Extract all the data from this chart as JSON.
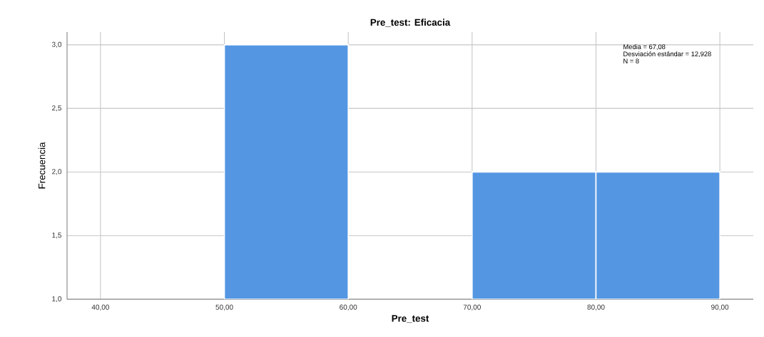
{
  "chart_data": {
    "type": "histogram",
    "title": "Pre_test: Eficacia",
    "xlabel": "Pre_test",
    "ylabel": "Frecuencia",
    "bins": [
      40,
      50,
      60,
      70,
      80,
      90
    ],
    "values": [
      null,
      3,
      null,
      2,
      2
    ],
    "color": "#5596e3",
    "xlim": [
      37.3,
      92.7
    ],
    "ylim": [
      1,
      3.1
    ],
    "xticks": [
      {
        "value": 40,
        "label": "40,00"
      },
      {
        "value": 50,
        "label": "50,00"
      },
      {
        "value": 60,
        "label": "60,00"
      },
      {
        "value": 70,
        "label": "70,00"
      },
      {
        "value": 80,
        "label": "80,00"
      },
      {
        "value": 90,
        "label": "90,00"
      }
    ],
    "yticks": [
      {
        "value": 1,
        "label": "1,0"
      },
      {
        "value": 1.5,
        "label": "1,5"
      },
      {
        "value": 2,
        "label": "2,0"
      },
      {
        "value": 2.5,
        "label": "2,5"
      },
      {
        "value": 3,
        "label": "3,0"
      }
    ],
    "grid": true,
    "annotations": [
      "Media = 67,08",
      "Desviación estándar = 12,928",
      "N = 8"
    ]
  }
}
